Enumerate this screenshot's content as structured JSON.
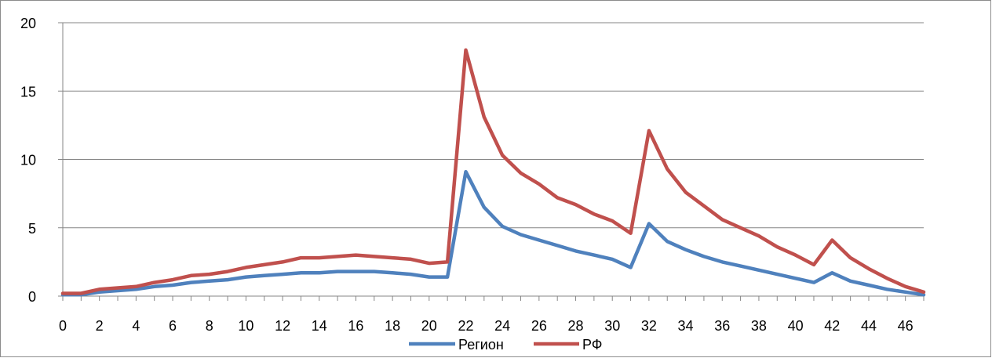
{
  "chart_data": {
    "type": "line",
    "title": "",
    "xlabel": "",
    "ylabel": "",
    "x": [
      0,
      1,
      2,
      3,
      4,
      5,
      6,
      7,
      8,
      9,
      10,
      11,
      12,
      13,
      14,
      15,
      16,
      17,
      18,
      19,
      20,
      21,
      22,
      23,
      24,
      25,
      26,
      27,
      28,
      29,
      30,
      31,
      32,
      33,
      34,
      35,
      36,
      37,
      38,
      39,
      40,
      41,
      42,
      43,
      44,
      45,
      46,
      47
    ],
    "xticks": [
      "0",
      "2",
      "4",
      "6",
      "8",
      "10",
      "12",
      "14",
      "16",
      "18",
      "20",
      "22",
      "24",
      "26",
      "28",
      "30",
      "32",
      "34",
      "36",
      "38",
      "40",
      "42",
      "44",
      "46"
    ],
    "yticks": [
      "0",
      "5",
      "10",
      "15",
      "20"
    ],
    "ylim": [
      0,
      20
    ],
    "xlim": [
      0,
      47
    ],
    "grid": "horizontal",
    "legend_position": "bottom",
    "series": [
      {
        "name": "Регион",
        "color": "#4f81bd",
        "values": [
          0.1,
          0.1,
          0.3,
          0.4,
          0.5,
          0.7,
          0.8,
          1.0,
          1.1,
          1.2,
          1.4,
          1.5,
          1.6,
          1.7,
          1.7,
          1.8,
          1.8,
          1.8,
          1.7,
          1.6,
          1.4,
          1.4,
          9.1,
          6.5,
          5.1,
          4.5,
          4.1,
          3.7,
          3.3,
          3.0,
          2.7,
          2.1,
          5.3,
          4.0,
          3.4,
          2.9,
          2.5,
          2.2,
          1.9,
          1.6,
          1.3,
          1.0,
          1.7,
          1.1,
          0.8,
          0.5,
          0.3,
          0.1
        ]
      },
      {
        "name": "РФ",
        "color": "#c0504d",
        "values": [
          0.2,
          0.2,
          0.5,
          0.6,
          0.7,
          1.0,
          1.2,
          1.5,
          1.6,
          1.8,
          2.1,
          2.3,
          2.5,
          2.8,
          2.8,
          2.9,
          3.0,
          2.9,
          2.8,
          2.7,
          2.4,
          2.5,
          18.0,
          13.1,
          10.3,
          9.0,
          8.2,
          7.2,
          6.7,
          6.0,
          5.5,
          4.6,
          12.1,
          9.3,
          7.6,
          6.6,
          5.6,
          5.0,
          4.4,
          3.6,
          3.0,
          2.3,
          4.1,
          2.8,
          2.0,
          1.3,
          0.7,
          0.3
        ]
      }
    ]
  }
}
